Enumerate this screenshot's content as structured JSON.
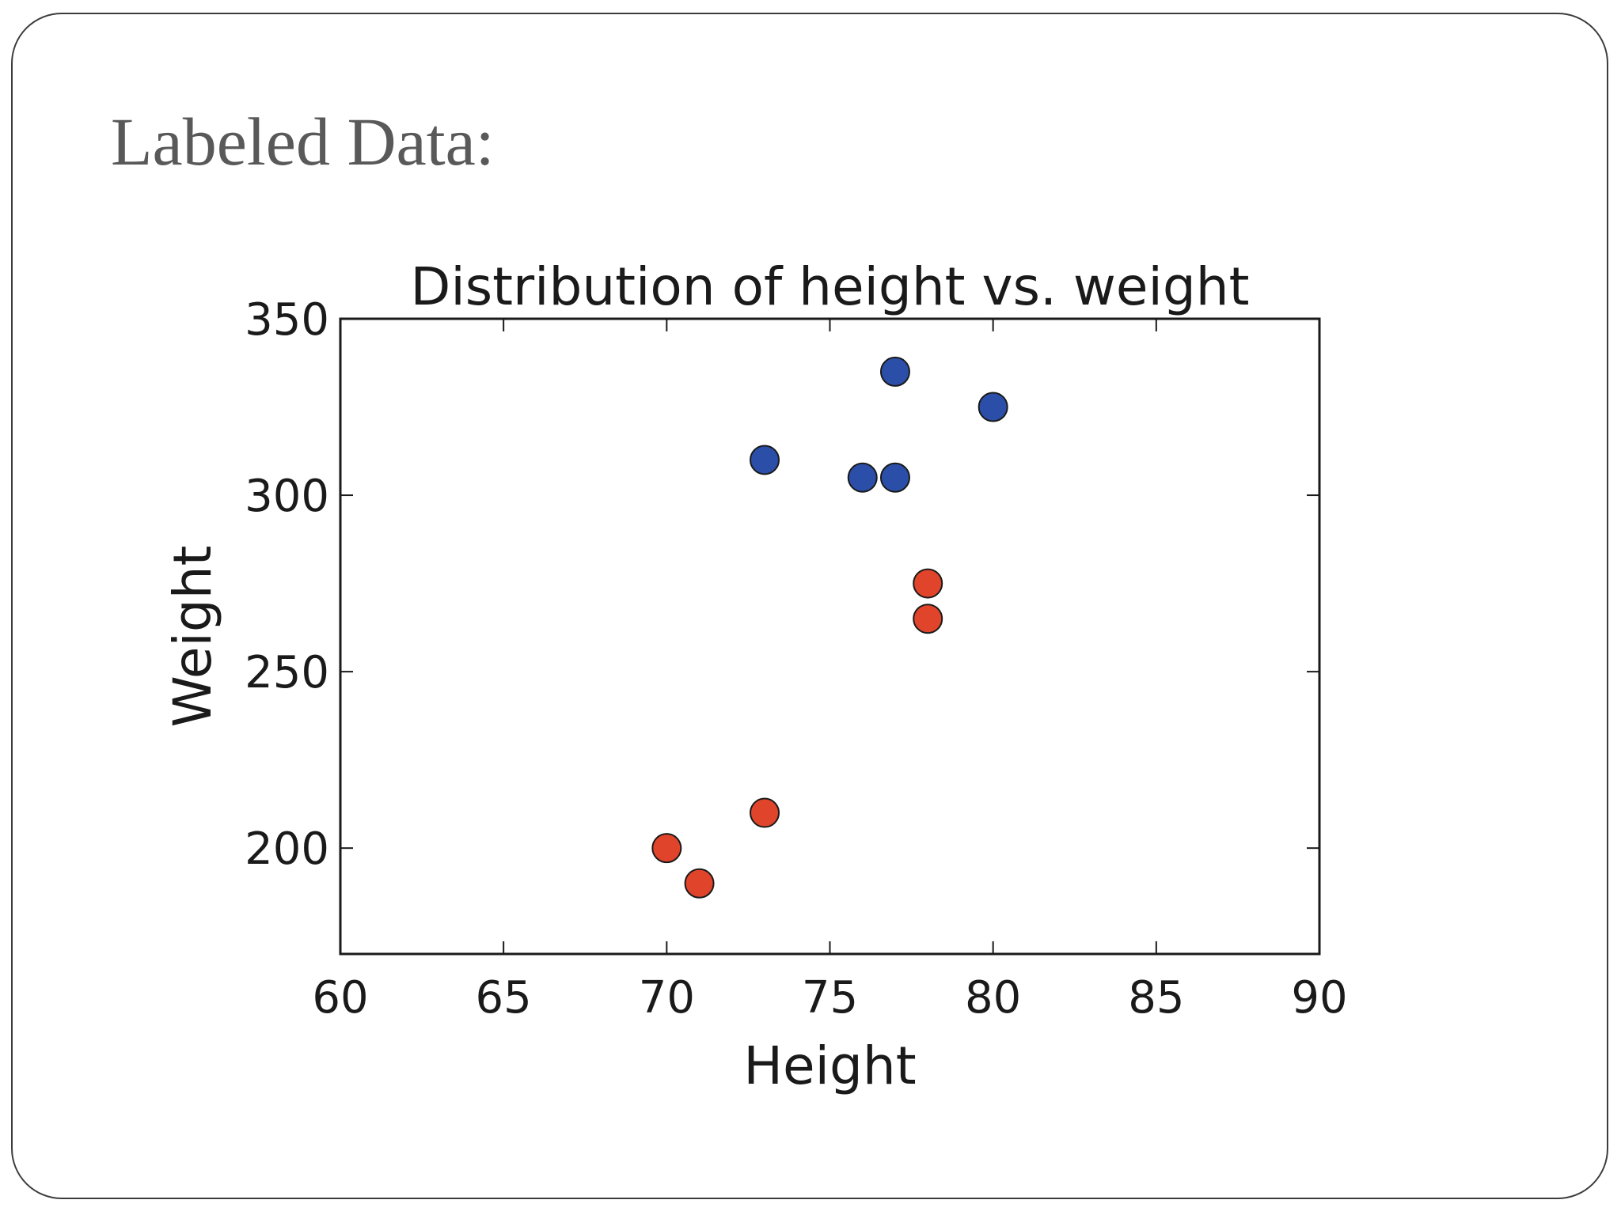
{
  "slide": {
    "title": "Labeled Data:"
  },
  "chart_data": {
    "type": "scatter",
    "title": "Distribution of height vs. weight",
    "xlabel": "Height",
    "ylabel": "Weight",
    "xlim": [
      60,
      90
    ],
    "ylim": [
      170,
      350
    ],
    "xticks": [
      "60",
      "65",
      "70",
      "75",
      "80",
      "85",
      "90"
    ],
    "yticks": [
      "200",
      "250",
      "300",
      "350"
    ],
    "xtick_values": [
      60,
      65,
      70,
      75,
      80,
      85,
      90
    ],
    "ytick_values": [
      200,
      250,
      300,
      350
    ],
    "grid": false,
    "series": [
      {
        "color": "#2b4fa8",
        "points": [
          {
            "x": 77,
            "y": 335
          },
          {
            "x": 80,
            "y": 325
          },
          {
            "x": 73,
            "y": 310
          },
          {
            "x": 76,
            "y": 305
          },
          {
            "x": 77,
            "y": 305
          }
        ]
      },
      {
        "color": "#e0452b",
        "points": [
          {
            "x": 78,
            "y": 275
          },
          {
            "x": 78,
            "y": 265
          },
          {
            "x": 73,
            "y": 210
          },
          {
            "x": 70,
            "y": 200
          },
          {
            "x": 71,
            "y": 190
          }
        ]
      }
    ]
  }
}
